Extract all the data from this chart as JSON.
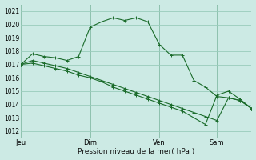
{
  "bg_color": "#cceae4",
  "grid_color": "#99ccbb",
  "line_color": "#1a6b2a",
  "title": "Pression niveau de la mer( hPa )",
  "ylim": [
    1011.5,
    1021.5
  ],
  "yticks": [
    1012,
    1013,
    1014,
    1015,
    1016,
    1017,
    1018,
    1019,
    1020,
    1021
  ],
  "xlim": [
    0,
    20
  ],
  "day_labels": [
    "Jeu",
    "Dim",
    "Ven",
    "Sam"
  ],
  "day_positions": [
    0,
    6,
    12,
    17
  ],
  "series1_x": [
    0,
    1,
    2,
    3,
    4,
    5,
    6,
    7,
    8,
    9,
    10,
    11,
    12,
    13,
    14,
    15,
    16,
    17,
    18,
    19,
    20
  ],
  "series1_y": [
    1017.0,
    1017.8,
    1017.6,
    1017.5,
    1017.3,
    1017.6,
    1019.8,
    1020.2,
    1020.5,
    1020.3,
    1020.5,
    1020.2,
    1018.5,
    1017.7,
    1017.7,
    1015.8,
    1015.3,
    1014.6,
    1014.5,
    1014.3,
    1013.7
  ],
  "series2_x": [
    0,
    1,
    2,
    3,
    4,
    5,
    6,
    7,
    8,
    9,
    10,
    11,
    12,
    13,
    14,
    15,
    16,
    17,
    18,
    19,
    20
  ],
  "series2_y": [
    1017.0,
    1017.3,
    1017.1,
    1016.9,
    1016.7,
    1016.4,
    1016.1,
    1015.8,
    1015.5,
    1015.2,
    1014.9,
    1014.6,
    1014.3,
    1014.0,
    1013.7,
    1013.4,
    1013.1,
    1012.8,
    1014.5,
    1014.3,
    1013.7
  ],
  "series3_x": [
    0,
    1,
    2,
    3,
    4,
    5,
    6,
    7,
    8,
    9,
    10,
    11,
    12,
    13,
    14,
    15,
    16,
    17,
    18,
    19,
    20
  ],
  "series3_y": [
    1017.0,
    1017.1,
    1016.9,
    1016.7,
    1016.5,
    1016.2,
    1016.0,
    1015.7,
    1015.3,
    1015.0,
    1014.7,
    1014.4,
    1014.1,
    1013.8,
    1013.5,
    1013.0,
    1012.5,
    1014.7,
    1015.0,
    1014.4,
    1013.7
  ],
  "vline_color": "#5a9070",
  "tick_fontsize": 5.5,
  "xlabel_fontsize": 6.5,
  "xtick_fontsize": 6.0
}
